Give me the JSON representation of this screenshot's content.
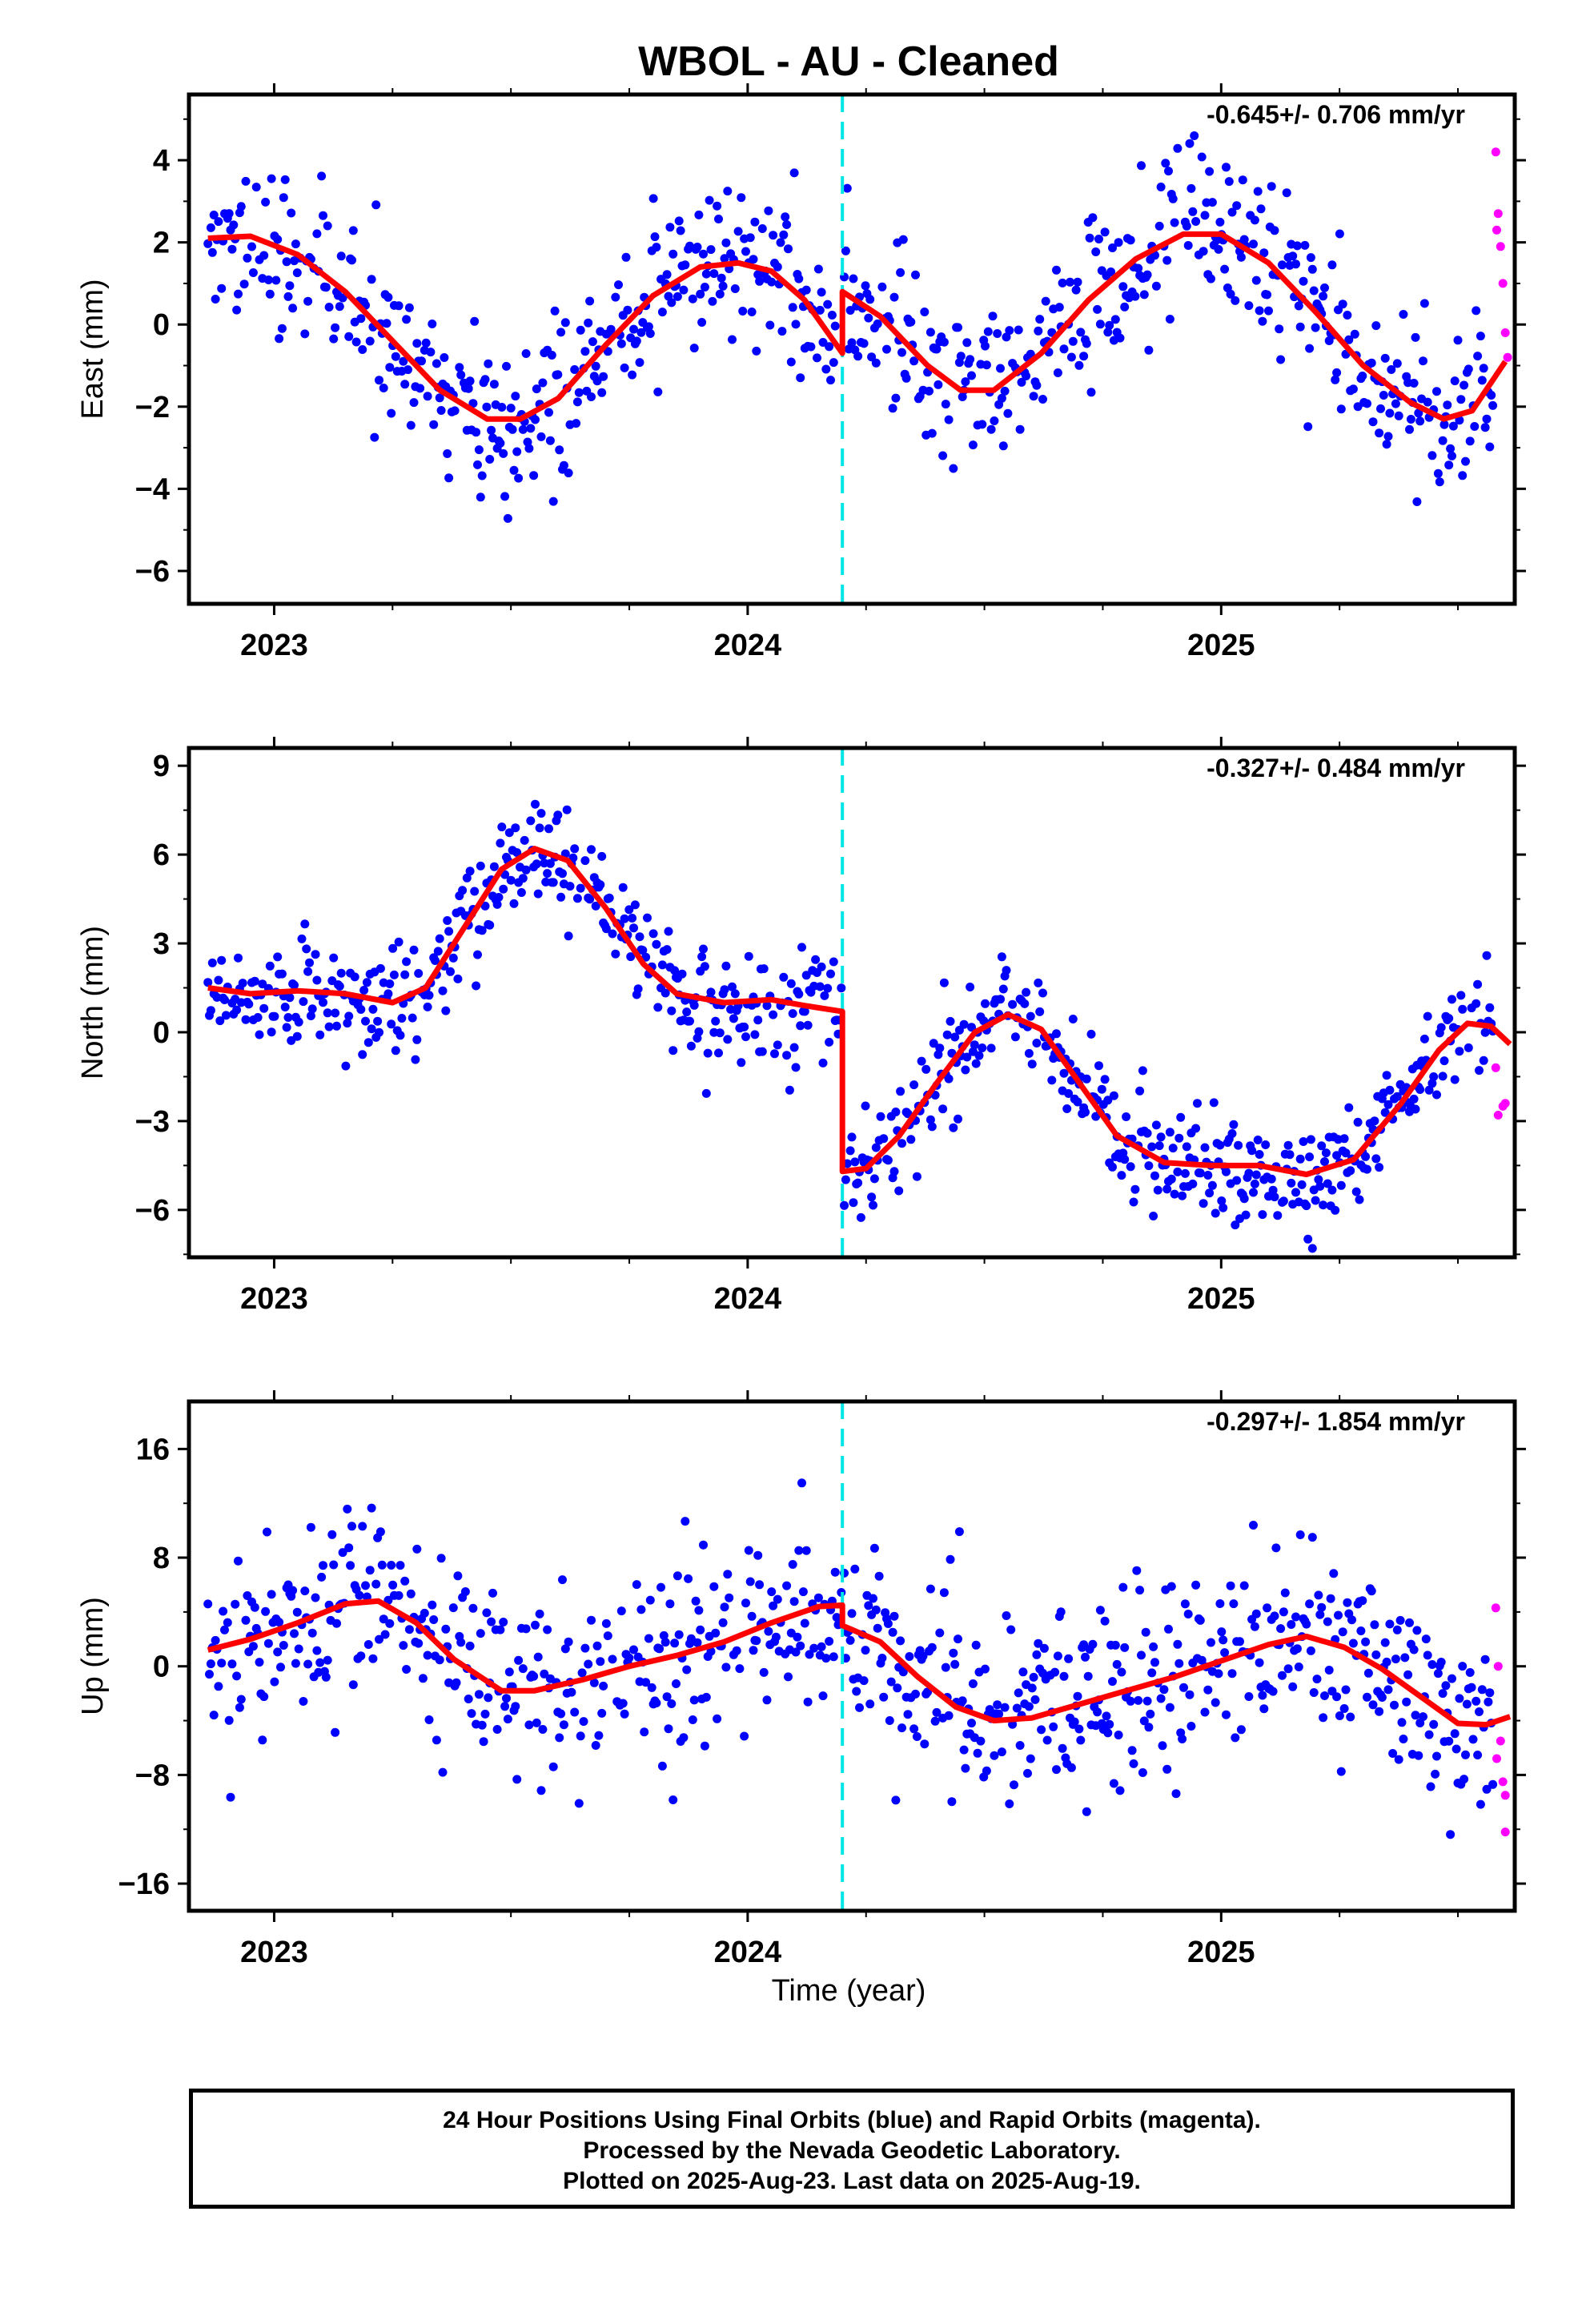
{
  "title": "WBOL  - AU - Cleaned",
  "xlabel": "Time (year)",
  "footer": {
    "line1": "24 Hour Positions Using Final Orbits (blue) and Rapid Orbits (magenta).",
    "line2": "Processed by the Nevada Geodetic Laboratory.",
    "line3": "Plotted on 2025-Aug-23. Last data on 2025-Aug-19."
  },
  "colors": {
    "final": "#0000ff",
    "rapid": "#ff00ff",
    "model": "#ff0000",
    "offset": "#00e5e5"
  },
  "chart_data": [
    {
      "type": "scatter",
      "component": "east",
      "ylabel": "East (mm)",
      "rate": "-0.645+/- 0.706 mm/yr",
      "xlim": [
        2022.82,
        2025.62
      ],
      "ylim": [
        -6.8,
        5.6
      ],
      "yticks": [
        -6,
        -4,
        -2,
        0,
        2,
        4
      ],
      "xticks": [
        2023,
        2024,
        2025
      ],
      "offset_epoch": 2024.2,
      "model": [
        [
          2022.86,
          2.1
        ],
        [
          2022.95,
          2.15
        ],
        [
          2023.05,
          1.7
        ],
        [
          2023.15,
          0.8
        ],
        [
          2023.25,
          -0.4
        ],
        [
          2023.35,
          -1.6
        ],
        [
          2023.45,
          -2.3
        ],
        [
          2023.52,
          -2.3
        ],
        [
          2023.6,
          -1.8
        ],
        [
          2023.7,
          -0.5
        ],
        [
          2023.8,
          0.7
        ],
        [
          2023.9,
          1.4
        ],
        [
          2023.98,
          1.5
        ],
        [
          2024.05,
          1.3
        ],
        [
          2024.12,
          0.6
        ],
        [
          2024.2,
          -0.7
        ],
        [
          2024.2,
          0.8
        ],
        [
          2024.28,
          0.2
        ],
        [
          2024.38,
          -1.0
        ],
        [
          2024.45,
          -1.6
        ],
        [
          2024.52,
          -1.6
        ],
        [
          2024.62,
          -0.7
        ],
        [
          2024.72,
          0.6
        ],
        [
          2024.82,
          1.6
        ],
        [
          2024.92,
          2.2
        ],
        [
          2025.0,
          2.2
        ],
        [
          2025.1,
          1.5
        ],
        [
          2025.2,
          0.3
        ],
        [
          2025.3,
          -1.0
        ],
        [
          2025.4,
          -1.9
        ],
        [
          2025.47,
          -2.3
        ],
        [
          2025.53,
          -2.1
        ],
        [
          2025.6,
          -0.9
        ]
      ],
      "rapid": [
        [
          2025.58,
          4.2
        ],
        [
          2025.585,
          2.7
        ],
        [
          2025.582,
          2.3
        ],
        [
          2025.59,
          1.9
        ],
        [
          2025.595,
          1.0
        ],
        [
          2025.6,
          -0.2
        ],
        [
          2025.605,
          -0.8
        ]
      ],
      "points": {
        "amp": 2.4,
        "noise": 1.0,
        "seed": 11
      }
    },
    {
      "type": "scatter",
      "component": "north",
      "ylabel": "North (mm)",
      "rate": "-0.327+/- 0.484 mm/yr",
      "xlim": [
        2022.82,
        2025.62
      ],
      "ylim": [
        -7.6,
        9.6
      ],
      "yticks": [
        -6,
        -3,
        0,
        3,
        6,
        9
      ],
      "xticks": [
        2023,
        2024,
        2025
      ],
      "offset_epoch": 2024.2,
      "model": [
        [
          2022.86,
          1.5
        ],
        [
          2022.95,
          1.3
        ],
        [
          2023.05,
          1.4
        ],
        [
          2023.15,
          1.3
        ],
        [
          2023.25,
          1.0
        ],
        [
          2023.32,
          1.5
        ],
        [
          2023.4,
          3.5
        ],
        [
          2023.48,
          5.5
        ],
        [
          2023.55,
          6.2
        ],
        [
          2023.62,
          5.8
        ],
        [
          2023.7,
          4.2
        ],
        [
          2023.78,
          2.3
        ],
        [
          2023.85,
          1.3
        ],
        [
          2023.95,
          1.0
        ],
        [
          2024.05,
          1.1
        ],
        [
          2024.12,
          0.9
        ],
        [
          2024.2,
          0.7
        ],
        [
          2024.2,
          -4.7
        ],
        [
          2024.25,
          -4.6
        ],
        [
          2024.32,
          -3.5
        ],
        [
          2024.4,
          -1.7
        ],
        [
          2024.48,
          0.0
        ],
        [
          2024.55,
          0.6
        ],
        [
          2024.62,
          0.1
        ],
        [
          2024.7,
          -1.7
        ],
        [
          2024.78,
          -3.5
        ],
        [
          2024.88,
          -4.4
        ],
        [
          2024.98,
          -4.5
        ],
        [
          2025.08,
          -4.5
        ],
        [
          2025.18,
          -4.8
        ],
        [
          2025.28,
          -4.3
        ],
        [
          2025.38,
          -2.4
        ],
        [
          2025.46,
          -0.6
        ],
        [
          2025.52,
          0.3
        ],
        [
          2025.57,
          0.2
        ],
        [
          2025.61,
          -0.4
        ]
      ],
      "rapid": [
        [
          2025.58,
          -1.2
        ],
        [
          2025.585,
          -2.8
        ],
        [
          2025.595,
          -2.5
        ],
        [
          2025.6,
          -2.4
        ]
      ],
      "points": {
        "amp": 1.0,
        "noise": 0.9,
        "seed": 23
      }
    },
    {
      "type": "scatter",
      "component": "up",
      "ylabel": "Up (mm)",
      "rate": "-0.297+/- 1.854 mm/yr",
      "xlim": [
        2022.82,
        2025.62
      ],
      "ylim": [
        -18,
        19.5
      ],
      "yticks": [
        -16,
        -8,
        0,
        8,
        16
      ],
      "xticks": [
        2023,
        2024,
        2025
      ],
      "offset_epoch": 2024.2,
      "model": [
        [
          2022.86,
          1.2
        ],
        [
          2022.95,
          2.0
        ],
        [
          2023.05,
          3.2
        ],
        [
          2023.15,
          4.6
        ],
        [
          2023.22,
          4.8
        ],
        [
          2023.3,
          3.2
        ],
        [
          2023.38,
          0.5
        ],
        [
          2023.48,
          -1.8
        ],
        [
          2023.55,
          -1.8
        ],
        [
          2023.65,
          -1.0
        ],
        [
          2023.75,
          0.0
        ],
        [
          2023.85,
          0.8
        ],
        [
          2023.95,
          1.8
        ],
        [
          2024.05,
          3.2
        ],
        [
          2024.15,
          4.4
        ],
        [
          2024.2,
          4.5
        ],
        [
          2024.2,
          3.0
        ],
        [
          2024.28,
          1.8
        ],
        [
          2024.36,
          -0.8
        ],
        [
          2024.44,
          -3.0
        ],
        [
          2024.52,
          -4.0
        ],
        [
          2024.6,
          -3.8
        ],
        [
          2024.7,
          -2.8
        ],
        [
          2024.8,
          -1.8
        ],
        [
          2024.9,
          -0.8
        ],
        [
          2025.0,
          0.4
        ],
        [
          2025.1,
          1.6
        ],
        [
          2025.18,
          2.2
        ],
        [
          2025.26,
          1.4
        ],
        [
          2025.34,
          -0.2
        ],
        [
          2025.42,
          -2.2
        ],
        [
          2025.5,
          -4.2
        ],
        [
          2025.56,
          -4.3
        ],
        [
          2025.61,
          -3.7
        ]
      ],
      "rapid": [
        [
          2025.58,
          4.3
        ],
        [
          2025.585,
          0.0
        ],
        [
          2025.59,
          -5.5
        ],
        [
          2025.582,
          -6.8
        ],
        [
          2025.595,
          -8.5
        ],
        [
          2025.6,
          -9.5
        ],
        [
          2025.6,
          -12.2
        ]
      ],
      "points": {
        "amp": 2.0,
        "noise": 3.6,
        "seed": 37
      }
    }
  ]
}
